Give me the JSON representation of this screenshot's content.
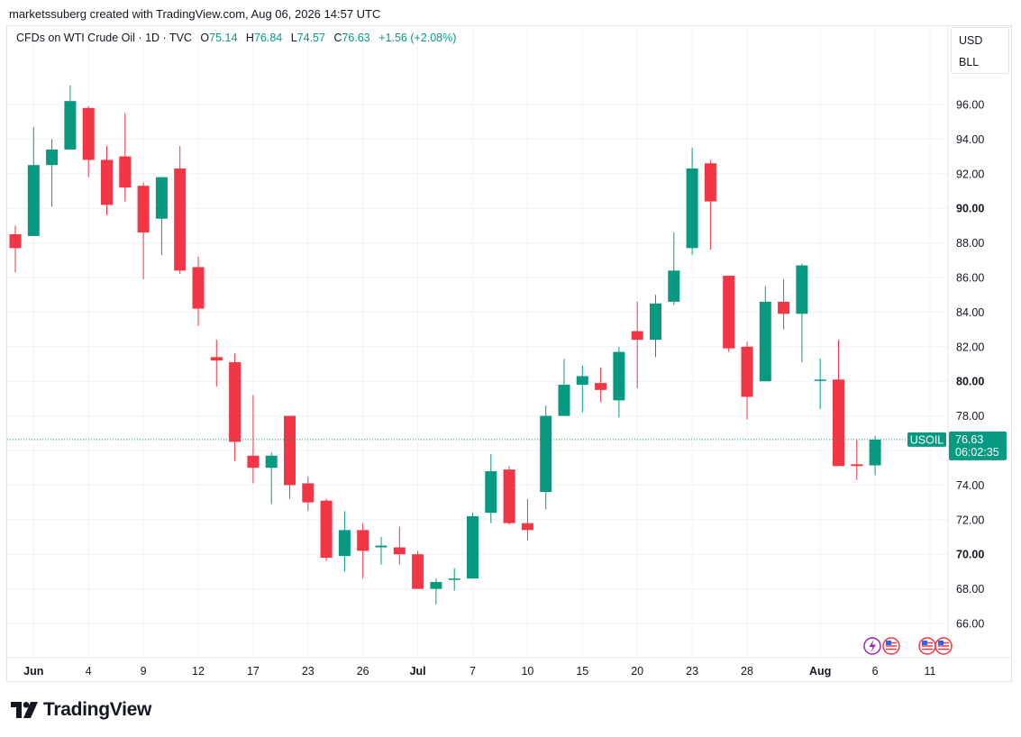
{
  "credit": "marketssuberg created with TradingView.com, Aug 06, 2026 14:57 UTC",
  "legend": {
    "title": "CFDs on WTI Crude Oil · 1D · TVC",
    "o_label": "O",
    "o": "75.14",
    "h_label": "H",
    "h": "76.84",
    "l_label": "L",
    "l": "74.57",
    "c_label": "C",
    "c": "76.63",
    "change": "+1.56 (+2.08%)"
  },
  "currency_box": {
    "currency": "USD",
    "unit": "BLL"
  },
  "price_label": {
    "symbol": "USOIL",
    "price": "76.63",
    "countdown": "06:02:35"
  },
  "logo_text": "TradingView",
  "colors": {
    "up": "#089981",
    "down": "#f23645",
    "grid": "#f0f3fa",
    "text": "#131722"
  },
  "icons": [
    "lightning-event-icon",
    "us-flag-event-icon",
    "us-flag-event-icon",
    "us-flag-event-icon"
  ],
  "chart_data": {
    "type": "candlestick",
    "title": "CFDs on WTI Crude Oil · 1D · TVC",
    "ylim": [
      64.5,
      98.5
    ],
    "y_ticks": [
      {
        "label": "66.00",
        "value": 66,
        "bold": false
      },
      {
        "label": "68.00",
        "value": 68,
        "bold": false
      },
      {
        "label": "70.00",
        "value": 70,
        "bold": true
      },
      {
        "label": "72.00",
        "value": 72,
        "bold": false
      },
      {
        "label": "74.00",
        "value": 74,
        "bold": false
      },
      {
        "label": "76.00",
        "value": 76,
        "bold": false
      },
      {
        "label": "78.00",
        "value": 78,
        "bold": false
      },
      {
        "label": "80.00",
        "value": 80,
        "bold": true
      },
      {
        "label": "82.00",
        "value": 82,
        "bold": false
      },
      {
        "label": "84.00",
        "value": 84,
        "bold": false
      },
      {
        "label": "86.00",
        "value": 86,
        "bold": false
      },
      {
        "label": "88.00",
        "value": 88,
        "bold": false
      },
      {
        "label": "90.00",
        "value": 90,
        "bold": true
      },
      {
        "label": "92.00",
        "value": 92,
        "bold": false
      },
      {
        "label": "94.00",
        "value": 94,
        "bold": false
      },
      {
        "label": "96.00",
        "value": 96,
        "bold": false
      }
    ],
    "x_ticks": [
      {
        "label": "Jun",
        "index": 1,
        "bold": true
      },
      {
        "label": "4",
        "index": 4,
        "bold": false
      },
      {
        "label": "9",
        "index": 7,
        "bold": false
      },
      {
        "label": "12",
        "index": 10,
        "bold": false
      },
      {
        "label": "17",
        "index": 13,
        "bold": false
      },
      {
        "label": "23",
        "index": 16,
        "bold": false
      },
      {
        "label": "26",
        "index": 19,
        "bold": false
      },
      {
        "label": "Jul",
        "index": 22,
        "bold": true
      },
      {
        "label": "7",
        "index": 25,
        "bold": false
      },
      {
        "label": "10",
        "index": 28,
        "bold": false
      },
      {
        "label": "15",
        "index": 31,
        "bold": false
      },
      {
        "label": "20",
        "index": 34,
        "bold": false
      },
      {
        "label": "23",
        "index": 37,
        "bold": false
      },
      {
        "label": "28",
        "index": 40,
        "bold": false
      },
      {
        "label": "Aug",
        "index": 44,
        "bold": true
      },
      {
        "label": "6",
        "index": 47,
        "bold": false
      },
      {
        "label": "11",
        "index": 50,
        "bold": false
      }
    ],
    "candles": [
      {
        "o": 88.5,
        "h": 89.0,
        "l": 86.3,
        "c": 87.7
      },
      {
        "o": 88.4,
        "h": 94.7,
        "l": 88.4,
        "c": 92.5
      },
      {
        "o": 92.5,
        "h": 94.0,
        "l": 90.1,
        "c": 93.4
      },
      {
        "o": 93.4,
        "h": 97.1,
        "l": 93.4,
        "c": 96.2
      },
      {
        "o": 95.8,
        "h": 95.9,
        "l": 91.8,
        "c": 92.8
      },
      {
        "o": 92.8,
        "h": 93.6,
        "l": 89.6,
        "c": 90.2
      },
      {
        "o": 93.0,
        "h": 95.5,
        "l": 90.4,
        "c": 91.2
      },
      {
        "o": 91.3,
        "h": 91.5,
        "l": 85.9,
        "c": 88.6
      },
      {
        "o": 89.4,
        "h": 91.8,
        "l": 87.3,
        "c": 91.8
      },
      {
        "o": 92.3,
        "h": 93.6,
        "l": 86.2,
        "c": 86.4
      },
      {
        "o": 86.6,
        "h": 87.2,
        "l": 83.2,
        "c": 84.2
      },
      {
        "o": 81.4,
        "h": 82.4,
        "l": 79.7,
        "c": 81.2
      },
      {
        "o": 81.1,
        "h": 81.6,
        "l": 75.4,
        "c": 76.5
      },
      {
        "o": 75.7,
        "h": 79.2,
        "l": 74.1,
        "c": 75.0
      },
      {
        "o": 75.0,
        "h": 75.9,
        "l": 72.9,
        "c": 75.7
      },
      {
        "o": 78.0,
        "h": 78.0,
        "l": 73.2,
        "c": 74.0
      },
      {
        "o": 74.1,
        "h": 74.5,
        "l": 72.5,
        "c": 73.0
      },
      {
        "o": 73.1,
        "h": 73.2,
        "l": 69.6,
        "c": 69.8
      },
      {
        "o": 69.9,
        "h": 72.5,
        "l": 69.0,
        "c": 71.4
      },
      {
        "o": 71.4,
        "h": 71.8,
        "l": 68.6,
        "c": 70.2
      },
      {
        "o": 70.4,
        "h": 71.0,
        "l": 69.4,
        "c": 70.5
      },
      {
        "o": 70.4,
        "h": 71.6,
        "l": 69.4,
        "c": 70.0
      },
      {
        "o": 70.0,
        "h": 70.2,
        "l": 68.0,
        "c": 68.0
      },
      {
        "o": 68.0,
        "h": 68.6,
        "l": 67.1,
        "c": 68.4
      },
      {
        "o": 68.6,
        "h": 69.2,
        "l": 67.9,
        "c": 68.6
      },
      {
        "o": 68.6,
        "h": 72.4,
        "l": 68.6,
        "c": 72.2
      },
      {
        "o": 72.4,
        "h": 75.8,
        "l": 71.8,
        "c": 74.8
      },
      {
        "o": 74.9,
        "h": 75.1,
        "l": 71.7,
        "c": 71.8
      },
      {
        "o": 71.8,
        "h": 73.2,
        "l": 70.8,
        "c": 71.4
      },
      {
        "o": 73.6,
        "h": 78.6,
        "l": 72.6,
        "c": 78.0
      },
      {
        "o": 78.0,
        "h": 81.3,
        "l": 78.0,
        "c": 79.8
      },
      {
        "o": 79.8,
        "h": 80.9,
        "l": 78.2,
        "c": 80.3
      },
      {
        "o": 79.9,
        "h": 80.8,
        "l": 78.8,
        "c": 79.5
      },
      {
        "o": 78.9,
        "h": 82.0,
        "l": 77.9,
        "c": 81.7
      },
      {
        "o": 82.9,
        "h": 84.6,
        "l": 79.6,
        "c": 82.4
      },
      {
        "o": 82.4,
        "h": 85.0,
        "l": 81.4,
        "c": 84.5
      },
      {
        "o": 84.6,
        "h": 88.6,
        "l": 84.4,
        "c": 86.4
      },
      {
        "o": 87.7,
        "h": 93.5,
        "l": 87.3,
        "c": 92.3
      },
      {
        "o": 92.6,
        "h": 92.8,
        "l": 87.6,
        "c": 90.4
      },
      {
        "o": 86.1,
        "h": 86.1,
        "l": 81.7,
        "c": 81.9
      },
      {
        "o": 82.0,
        "h": 82.3,
        "l": 77.8,
        "c": 79.1
      },
      {
        "o": 80.0,
        "h": 85.5,
        "l": 80.0,
        "c": 84.6
      },
      {
        "o": 84.6,
        "h": 85.9,
        "l": 83.0,
        "c": 83.9
      },
      {
        "o": 83.9,
        "h": 86.8,
        "l": 81.1,
        "c": 86.7
      },
      {
        "o": 80.1,
        "h": 81.3,
        "l": 78.4,
        "c": 80.1
      },
      {
        "o": 80.1,
        "h": 82.4,
        "l": 75.1,
        "c": 75.1
      },
      {
        "o": 75.2,
        "h": 76.6,
        "l": 74.3,
        "c": 75.1
      },
      {
        "o": 75.14,
        "h": 76.84,
        "l": 74.57,
        "c": 76.63
      }
    ],
    "last_price": 76.63
  }
}
